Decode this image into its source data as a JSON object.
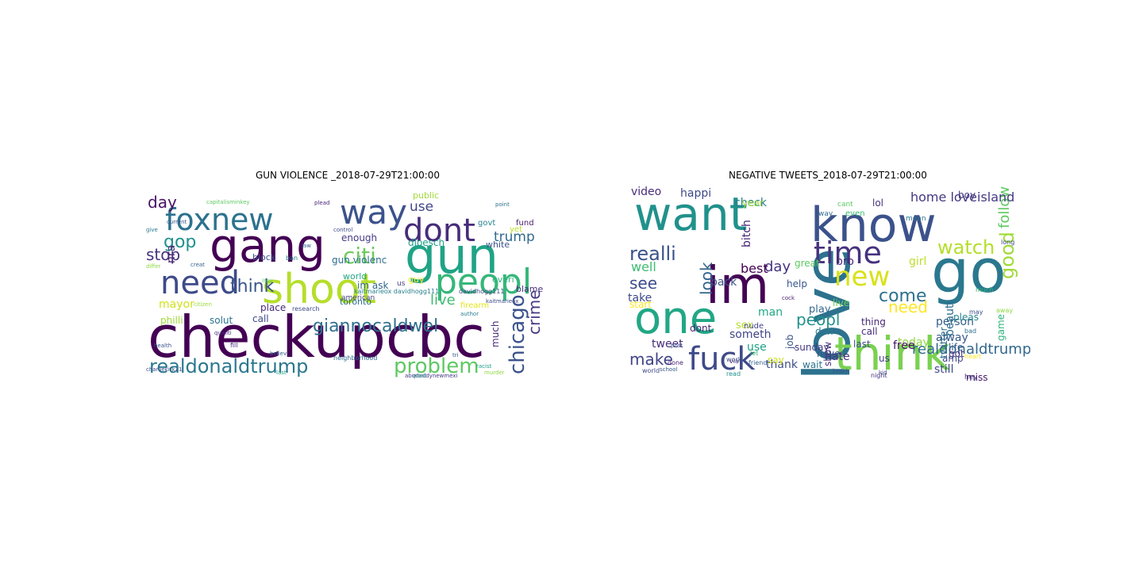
{
  "figure": {
    "left": {
      "title": "GUN VIOLENCE _2018-07-29T21:00:00",
      "words": [
        {
          "text": "checkupcbc",
          "color": "#440154"
        },
        {
          "text": "gang",
          "color": "#440154"
        },
        {
          "text": "gun",
          "color": "#20a386"
        },
        {
          "text": "shoot",
          "color": "#b5de2b"
        },
        {
          "text": "foxnew",
          "color": "#2c728e"
        },
        {
          "text": "way",
          "color": "#3b528b"
        },
        {
          "text": "dont",
          "color": "#472c7a"
        },
        {
          "text": "need",
          "color": "#3e4a89"
        },
        {
          "text": "peopl",
          "color": "#35b779"
        },
        {
          "text": "realdonaldtrump",
          "color": "#2a788e"
        },
        {
          "text": "problem",
          "color": "#5ec962"
        },
        {
          "text": "chicago",
          "color": "#3b528b"
        },
        {
          "text": "crime",
          "color": "#443983"
        },
        {
          "text": "giannocaldwel",
          "color": "#2d708e"
        },
        {
          "text": "citi",
          "color": "#6ccd5a"
        },
        {
          "text": "trump",
          "color": "#31688e"
        },
        {
          "text": "stop",
          "color": "#46327e"
        },
        {
          "text": "gop",
          "color": "#21918c"
        },
        {
          "text": "day",
          "color": "#471365"
        },
        {
          "text": "think",
          "color": "#39568c"
        },
        {
          "text": "live",
          "color": "#3fbc73"
        },
        {
          "text": "use",
          "color": "#414487"
        },
        {
          "text": "gun violenc",
          "color": "#2e6e8e"
        },
        {
          "text": "philli",
          "color": "#9fda3a"
        },
        {
          "text": "block",
          "color": "#3a538b"
        },
        {
          "text": "nra",
          "color": "#481f70"
        },
        {
          "text": "mayor",
          "color": "#d0e11c"
        },
        {
          "text": "place",
          "color": "#482878"
        },
        {
          "text": "solut",
          "color": "#2c728e"
        },
        {
          "text": "call",
          "color": "#3e4989"
        },
        {
          "text": "im ask",
          "color": "#31688e"
        },
        {
          "text": "much",
          "color": "#472d7b"
        },
        {
          "text": "guy",
          "color": "#fde725"
        },
        {
          "text": "firearm",
          "color": "#e5e419"
        },
        {
          "text": "everi",
          "color": "#2db27d"
        },
        {
          "text": "blame",
          "color": "#472f7d"
        },
        {
          "text": "white",
          "color": "#3b528b"
        },
        {
          "text": "govt",
          "color": "#24868e"
        },
        {
          "text": "fund",
          "color": "#481a6c"
        },
        {
          "text": "world",
          "color": "#22a785"
        },
        {
          "text": "yet",
          "color": "#bddf26"
        },
        {
          "text": "dloesch",
          "color": "#1f9e89"
        },
        {
          "text": "enough",
          "color": "#443b84"
        },
        {
          "text": "toronto",
          "color": "#2e6f8e"
        },
        {
          "text": "public",
          "color": "#a2da37"
        },
        {
          "text": "american",
          "color": "#414487"
        },
        {
          "text": "research",
          "color": "#3e4c8a"
        },
        {
          "text": "ban",
          "color": "#2a788e"
        },
        {
          "text": "us",
          "color": "#433e85"
        },
        {
          "text": "davidhogg111",
          "color": "#404688"
        },
        {
          "text": "kaitmarieox davidhogg111",
          "color": "#27808e"
        },
        {
          "text": "charliekirk11",
          "color": "#3b528b"
        },
        {
          "text": "abqdaddynewmexi",
          "color": "#453781"
        },
        {
          "text": "kaitmarieox",
          "color": "#3e4989"
        },
        {
          "text": "capitalisminkey",
          "color": "#5ec962"
        },
        {
          "text": "current",
          "color": "#39568c"
        },
        {
          "text": "creat",
          "color": "#33638d"
        },
        {
          "text": "differ",
          "color": "#8fd744"
        },
        {
          "text": "give",
          "color": "#2a788e"
        },
        {
          "text": "fill",
          "color": "#46307e"
        },
        {
          "text": "health",
          "color": "#3a548c"
        },
        {
          "text": "murder",
          "color": "#90d743"
        },
        {
          "text": "racist",
          "color": "#1fa088"
        },
        {
          "text": "point",
          "color": "#2c738e"
        },
        {
          "text": "plead",
          "color": "#482576"
        },
        {
          "text": "neighborhood",
          "color": "#2f6c8e"
        },
        {
          "text": "believ",
          "color": "#365c8d"
        },
        {
          "text": "last",
          "color": "#1fa287"
        },
        {
          "text": "want",
          "color": "#21918c"
        },
        {
          "text": "qualiti",
          "color": "#46337f"
        },
        {
          "text": "control",
          "color": "#3d4e8a"
        },
        {
          "text": "author",
          "color": "#277f8e"
        },
        {
          "text": "citizen",
          "color": "#9bd93c"
        },
        {
          "text": "issu",
          "color": "#5cc863"
        },
        {
          "text": "law",
          "color": "#34618d"
        },
        {
          "text": "tri",
          "color": "#38588c"
        }
      ]
    },
    "right": {
      "title": "NEGATIVE TWEETS_2018-07-29T21:00:00",
      "words": [
        {
          "text": "love",
          "color": "#2c728e"
        },
        {
          "text": "want",
          "color": "#21918c"
        },
        {
          "text": "know",
          "color": "#3b528b"
        },
        {
          "text": "go",
          "color": "#2a788e"
        },
        {
          "text": "im",
          "color": "#440154"
        },
        {
          "text": "one",
          "color": "#22a785"
        },
        {
          "text": "think",
          "color": "#7ad151"
        },
        {
          "text": "fuck",
          "color": "#3e4a89"
        },
        {
          "text": "time",
          "color": "#46327e"
        },
        {
          "text": "new",
          "color": "#d8e219"
        },
        {
          "text": "realli",
          "color": "#3b528b"
        },
        {
          "text": "watch",
          "color": "#b5de2b"
        },
        {
          "text": "good",
          "color": "#a0da39"
        },
        {
          "text": "day",
          "color": "#46337f"
        },
        {
          "text": "see",
          "color": "#3e4c8a"
        },
        {
          "text": "look",
          "color": "#33638d"
        },
        {
          "text": "come",
          "color": "#2d708e"
        },
        {
          "text": "make",
          "color": "#414487"
        },
        {
          "text": "peopl",
          "color": "#21918c"
        },
        {
          "text": "need",
          "color": "#fde725"
        },
        {
          "text": "realdonaldtrump",
          "color": "#31688e"
        },
        {
          "text": "follow",
          "color": "#5ec962"
        },
        {
          "text": "home loveisland",
          "color": "#443983"
        },
        {
          "text": "video",
          "color": "#472d7b"
        },
        {
          "text": "happi",
          "color": "#3f4889"
        },
        {
          "text": "check",
          "color": "#277f8e"
        },
        {
          "text": "lol",
          "color": "#46307e"
        },
        {
          "text": "boy",
          "color": "#453781"
        },
        {
          "text": "bro",
          "color": "#482878"
        },
        {
          "text": "girl",
          "color": "#bddf26"
        },
        {
          "text": "well",
          "color": "#3fbc73"
        },
        {
          "text": "best",
          "color": "#440154"
        },
        {
          "text": "back",
          "color": "#3a538b"
        },
        {
          "text": "help",
          "color": "#39568c"
        },
        {
          "text": "great",
          "color": "#5ec962"
        },
        {
          "text": "take",
          "color": "#3e4989"
        },
        {
          "text": "dont",
          "color": "#482576"
        },
        {
          "text": "job",
          "color": "#3b528b"
        },
        {
          "text": "person",
          "color": "#34618d"
        },
        {
          "text": "alway",
          "color": "#38588c"
        },
        {
          "text": "life",
          "color": "#365c8d"
        },
        {
          "text": "still",
          "color": "#3e4a89"
        },
        {
          "text": "got",
          "color": "#472f7d"
        },
        {
          "text": "beauti",
          "color": "#2e6e8e"
        },
        {
          "text": "today",
          "color": "#8fd744"
        },
        {
          "text": "free",
          "color": "#471365"
        },
        {
          "text": "us",
          "color": "#443b84"
        },
        {
          "text": "use",
          "color": "#1fa088"
        },
        {
          "text": "thank",
          "color": "#3d4e8a"
        },
        {
          "text": "wait",
          "color": "#2c738e"
        },
        {
          "text": "hate",
          "color": "#46307e"
        },
        {
          "text": "miss",
          "color": "#481a6c"
        },
        {
          "text": "tweet",
          "color": "#472d7b"
        },
        {
          "text": "amp",
          "color": "#3e4989"
        },
        {
          "text": "someth",
          "color": "#404688"
        },
        {
          "text": "sex",
          "color": "#b5de2b"
        },
        {
          "text": "man",
          "color": "#22a785"
        },
        {
          "text": "don",
          "color": "#2a788e"
        },
        {
          "text": "call",
          "color": "#472c7a"
        },
        {
          "text": "play",
          "color": "#31688e"
        },
        {
          "text": "live",
          "color": "#6ccd5a"
        },
        {
          "text": "say",
          "color": "#d0e11c"
        },
        {
          "text": "thing",
          "color": "#482878"
        },
        {
          "text": "last",
          "color": "#3e4c8a"
        },
        {
          "text": "game",
          "color": "#2db27d"
        },
        {
          "text": "twitter",
          "color": "#2e6f8e"
        },
        {
          "text": "pleas",
          "color": "#24868e"
        },
        {
          "text": "show",
          "color": "#472f7d"
        },
        {
          "text": "start",
          "color": "#fde725"
        },
        {
          "text": "sunday",
          "color": "#443983"
        },
        {
          "text": "never",
          "color": "#3a548c"
        },
        {
          "text": "friend",
          "color": "#33638d"
        },
        {
          "text": "read",
          "color": "#21918c"
        },
        {
          "text": "work",
          "color": "#3b528b"
        },
        {
          "text": "night",
          "color": "#46337f"
        },
        {
          "text": "world",
          "color": "#3e4a89"
        },
        {
          "text": "school",
          "color": "#38588c"
        },
        {
          "text": "bitch",
          "color": "#482475"
        },
        {
          "text": "nude",
          "color": "#414487"
        },
        {
          "text": "year",
          "color": "#9fda3a"
        },
        {
          "text": "even",
          "color": "#3fbc73"
        },
        {
          "text": "mean",
          "color": "#2d708e"
        },
        {
          "text": "way",
          "color": "#31688e"
        },
        {
          "text": "cant",
          "color": "#5cc863"
        },
        {
          "text": "via",
          "color": "#472c7a"
        },
        {
          "text": "let",
          "color": "#36ba75"
        },
        {
          "text": "long",
          "color": "#3e4989"
        },
        {
          "text": "may",
          "color": "#3d4e8a"
        },
        {
          "text": "bad",
          "color": "#2c728e"
        },
        {
          "text": "much",
          "color": "#35b779"
        },
        {
          "text": "heart",
          "color": "#fde725"
        },
        {
          "text": "beach",
          "color": "#3a538b"
        },
        {
          "text": "away",
          "color": "#8fd744"
        },
        {
          "text": "done",
          "color": "#482576"
        },
        {
          "text": "kid",
          "color": "#404688"
        },
        {
          "text": "cock",
          "color": "#481a6c"
        },
        {
          "text": "post",
          "color": "#3b528b"
        },
        {
          "text": "hey",
          "color": "#453781"
        },
        {
          "text": "team",
          "color": "#2c738e"
        },
        {
          "text": "next",
          "color": "#5ec962"
        },
        {
          "text": "tell",
          "color": "#31688e"
        },
        {
          "text": "ye",
          "color": "#bddf26"
        }
      ]
    }
  }
}
